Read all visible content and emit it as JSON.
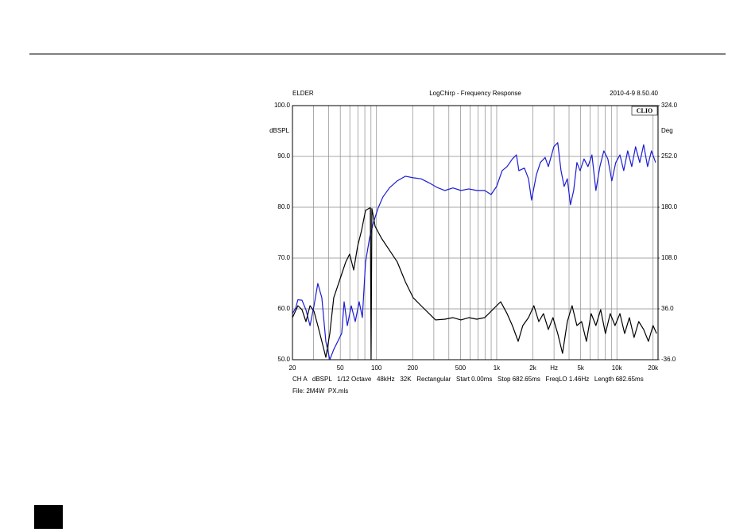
{
  "chart_data": {
    "type": "line",
    "header_left": "ELDER",
    "title": "LogChirp - Frequency Response",
    "header_right": "2010-4-9 8.50.40",
    "brand": "CLIO",
    "ylabel": "dBSPL",
    "y2label": "Deg",
    "footer": "CH A   dBSPL   1/12 Octave   48kHz   32K   Rectangular   Start 0.00ms   Stop 682.65ms   FreqLO 1.46Hz   Length 682.65ms",
    "file": "File: 2M4W  PX.mls",
    "xscale": "log",
    "grid": true,
    "xlim": [
      20,
      22000
    ],
    "xticks": [
      20,
      50,
      100,
      200,
      500,
      {
        "value": 1000,
        "label": "1k"
      },
      {
        "value": 2000,
        "label": "2k"
      },
      {
        "value": 3000,
        "label": "Hz"
      },
      {
        "value": 5000,
        "label": "5k"
      },
      {
        "value": 10000,
        "label": "10k"
      },
      {
        "value": 20000,
        "label": "20k"
      }
    ],
    "xgrid": [
      30,
      40,
      50,
      60,
      70,
      80,
      90,
      100,
      200,
      300,
      400,
      500,
      600,
      700,
      800,
      900,
      1000,
      2000,
      3000,
      4000,
      5000,
      6000,
      7000,
      8000,
      9000,
      10000,
      20000
    ],
    "ylim": [
      50,
      100
    ],
    "yticks": [
      {
        "value": 50,
        "label": "50.0"
      },
      {
        "value": 60,
        "label": "60.0"
      },
      {
        "value": 70,
        "label": "70.0"
      },
      {
        "value": 80,
        "label": "80.0"
      },
      {
        "value": 90,
        "label": "90.0"
      },
      {
        "value": 100,
        "label": "100.0"
      }
    ],
    "y2lim": [
      -36,
      324
    ],
    "y2ticks": [
      {
        "value": -36,
        "label": "-36.0"
      },
      {
        "value": 36,
        "label": "36.0"
      },
      {
        "value": 108,
        "label": "108.0"
      },
      {
        "value": 180,
        "label": "180.0"
      },
      {
        "value": 252,
        "label": "252.0"
      },
      {
        "value": 324,
        "label": "324.0"
      }
    ],
    "series": [
      {
        "color": "#1c1cd4",
        "x": [
          20,
          21.3,
          22.2,
          24,
          25.9,
          28,
          30.2,
          32.5,
          35.1,
          37.9,
          40.9,
          44.1,
          47.6,
          51.4,
          53.8,
          57.2,
          61.7,
          66.6,
          71.8,
          76.3,
          81.1,
          87.5,
          94.4,
          103,
          113,
          128,
          149,
          174,
          202,
          235,
          274,
          319,
          371,
          433,
          504,
          587,
          683,
          795,
          898,
          999,
          1110,
          1220,
          1350,
          1460,
          1530,
          1700,
          1840,
          1950,
          2140,
          2310,
          2530,
          2690,
          2990,
          3220,
          3430,
          3640,
          3870,
          4110,
          4370,
          4650,
          4940,
          5330,
          5750,
          6200,
          6690,
          7220,
          7790,
          8410,
          9080,
          9790,
          10600,
          11400,
          12300,
          13300,
          14300,
          15500,
          16700,
          18000,
          19400,
          21000
        ],
        "values": [
          59.1,
          60.2,
          61.8,
          61.7,
          59.8,
          56.7,
          60.6,
          65,
          62.2,
          53.6,
          50,
          52,
          53.6,
          55.2,
          61.4,
          56.7,
          60.6,
          57.5,
          61.4,
          58.3,
          69.2,
          73.9,
          77,
          79.8,
          82,
          83.8,
          85.2,
          86.1,
          85.8,
          85.6,
          84.8,
          83.9,
          83.3,
          83.8,
          83.3,
          83.6,
          83.3,
          83.3,
          82.5,
          84.1,
          87.2,
          88,
          89.5,
          90.3,
          87.2,
          87.7,
          85.6,
          81.4,
          86.4,
          88.8,
          89.8,
          88,
          91.9,
          92.7,
          87.2,
          84.1,
          85.6,
          80.5,
          83.3,
          88.8,
          87.2,
          89.5,
          88,
          90.3,
          83.3,
          88,
          91.1,
          89.5,
          85.2,
          88.8,
          90.3,
          87.2,
          91.1,
          88,
          91.9,
          88.8,
          92.3,
          88,
          91.1,
          88.8
        ]
      },
      {
        "color": "#000000",
        "axis": "y2",
        "x": [
          20,
          22.2,
          24,
          25.9,
          28,
          30.2,
          32.5,
          35.1,
          37.9,
          40.9,
          44.1,
          47.6,
          51.4,
          55.5,
          59.8,
          64.6,
          69.7,
          75.2,
          81.1,
          87.5,
          88.9,
          90.2,
          91.6,
          97.4,
          110,
          128,
          149,
          174,
          202,
          235,
          274,
          310,
          371,
          433,
          504,
          587,
          683,
          795,
          898,
          999,
          1080,
          1220,
          1350,
          1510,
          1650,
          1840,
          2040,
          2240,
          2450,
          2690,
          2940,
          3220,
          3530,
          3870,
          4240,
          4650,
          5090,
          5580,
          6110,
          6690,
          7330,
          8030,
          8800,
          9650,
          10600,
          11600,
          12700,
          13900,
          15200,
          16700,
          18300,
          20000,
          21400
        ],
        "values": [
          23.6,
          40.5,
          34.9,
          18,
          40.5,
          32.6,
          12.4,
          -10,
          -32.6,
          1.1,
          51.8,
          68.6,
          85.5,
          102.4,
          113.6,
          91.1,
          124.9,
          147.4,
          175.5,
          178.9,
          179,
          -36,
          178,
          153,
          136.1,
          119.3,
          102.4,
          74.3,
          51.8,
          40.5,
          29.3,
          20.3,
          21.4,
          23.6,
          20.3,
          23.6,
          21.4,
          23.6,
          32.6,
          40.5,
          46.1,
          29.3,
          12.4,
          -10,
          12.4,
          23.6,
          40.5,
          18,
          29.3,
          6.8,
          23.6,
          1.1,
          -27,
          18,
          40.5,
          12.4,
          18,
          -10,
          29.3,
          12.4,
          34.9,
          1.1,
          29.3,
          12.4,
          29.3,
          1.1,
          23.6,
          -4.5,
          18,
          6.8,
          -10,
          12.4,
          1.1
        ]
      }
    ]
  }
}
